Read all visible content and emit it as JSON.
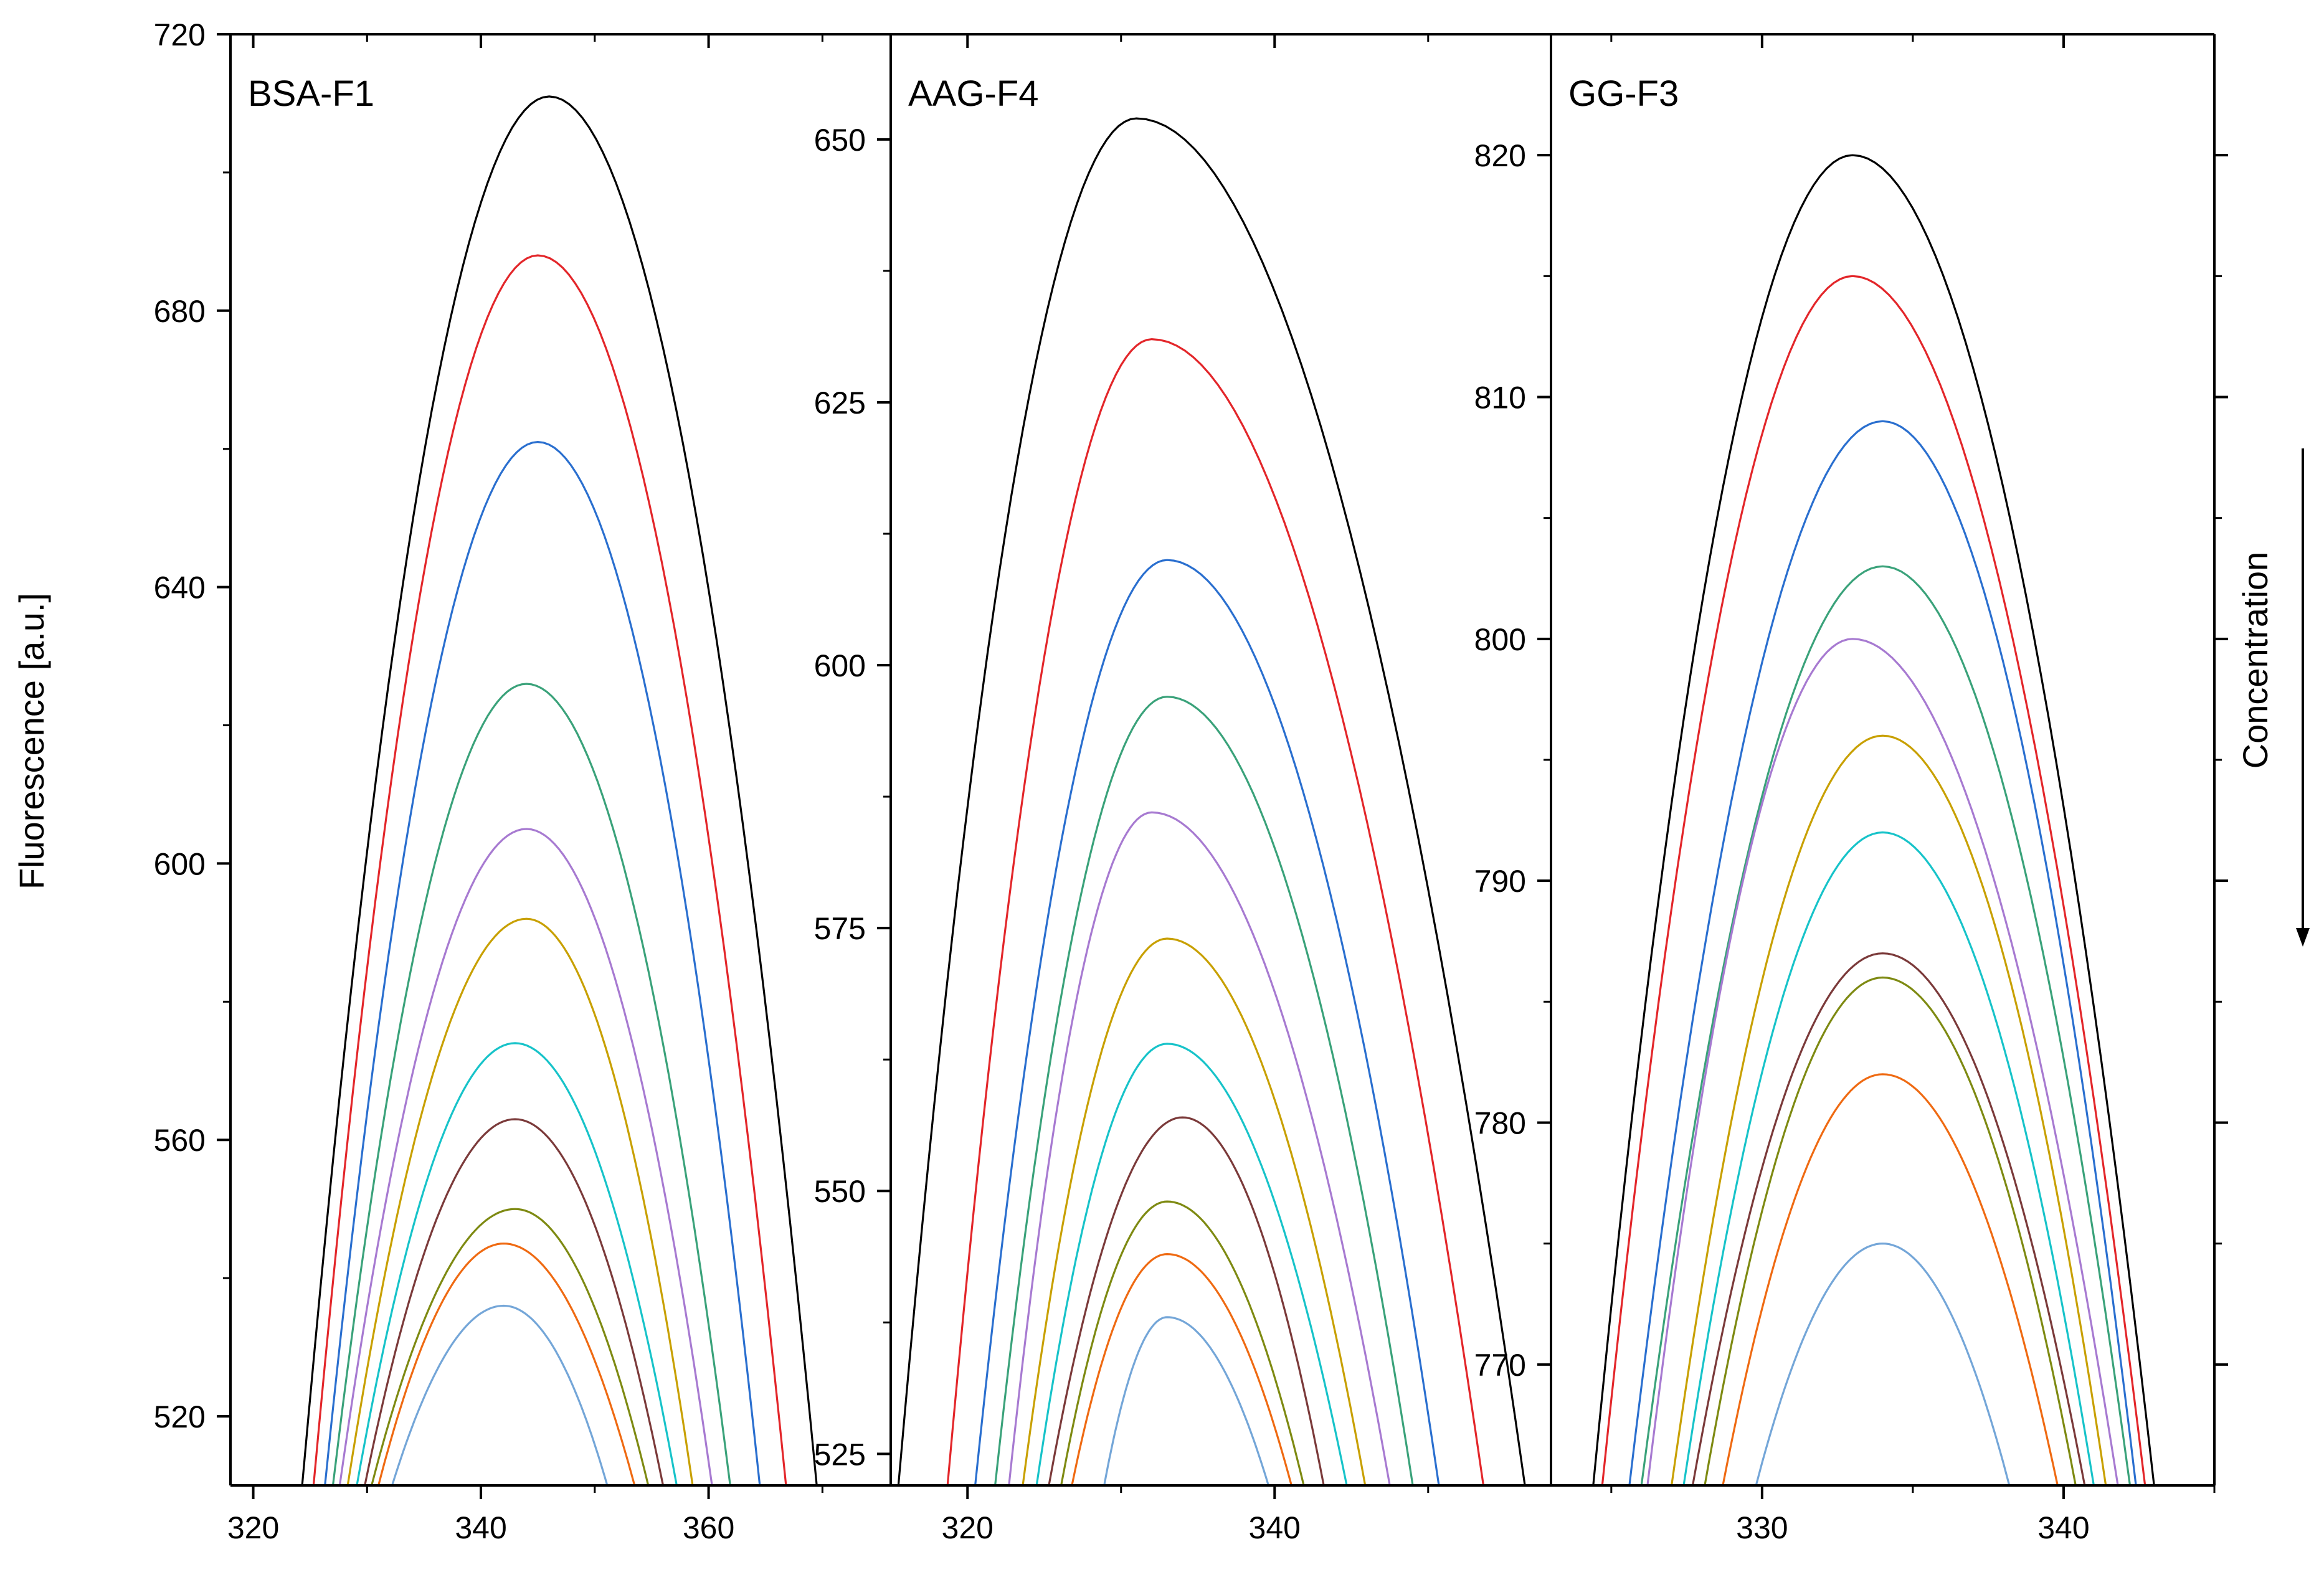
{
  "figure": {
    "ylabel": "Fluorescence [a.u.]",
    "annotation": "Concentration",
    "series_colors": [
      "#000000",
      "#e3262a",
      "#2a6fcf",
      "#3aa27a",
      "#a77ad1",
      "#c8a000",
      "#17c3c9",
      "#7b3a3a",
      "#7e8a12",
      "#ef6a12",
      "#74a6d8"
    ]
  },
  "chart_data": [
    {
      "type": "line",
      "title": "BSA-F1",
      "xlabel": "",
      "ylabel": "Fluorescence [a.u.]",
      "xlim": [
        318,
        376
      ],
      "ylim": [
        510,
        720
      ],
      "xticks": [
        320,
        340,
        360
      ],
      "yticks": [
        520,
        560,
        600,
        640,
        680,
        720
      ],
      "series_count": 11,
      "peaks": [
        {
          "x": 346,
          "y": 711
        },
        {
          "x": 345,
          "y": 688
        },
        {
          "x": 345,
          "y": 661
        },
        {
          "x": 344,
          "y": 626
        },
        {
          "x": 344,
          "y": 605
        },
        {
          "x": 344,
          "y": 592
        },
        {
          "x": 343,
          "y": 574
        },
        {
          "x": 343,
          "y": 563
        },
        {
          "x": 343,
          "y": 550
        },
        {
          "x": 342,
          "y": 545
        },
        {
          "x": 342,
          "y": 536
        }
      ],
      "start_x": [
        324.3,
        325.3,
        326.3,
        327.0,
        327.6,
        328.3,
        329.1,
        329.8,
        330.4,
        331.0,
        332.2
      ],
      "end_x": [
        369.5,
        366.8,
        364.5,
        361.9,
        360.3,
        358.6,
        357.2,
        356.0,
        354.7,
        353.5,
        351.1
      ]
    },
    {
      "type": "line",
      "title": "AAG-F4",
      "xlabel": "",
      "ylabel": "",
      "xlim": [
        315,
        358
      ],
      "ylim": [
        522,
        660
      ],
      "xticks": [
        320,
        340
      ],
      "yticks": [
        525,
        550,
        575,
        600,
        625,
        650
      ],
      "series_count": 11,
      "peaks": [
        {
          "x": 331,
          "y": 652
        },
        {
          "x": 332,
          "y": 631
        },
        {
          "x": 333,
          "y": 610
        },
        {
          "x": 333,
          "y": 597
        },
        {
          "x": 332,
          "y": 586
        },
        {
          "x": 333,
          "y": 574
        },
        {
          "x": 333,
          "y": 564
        },
        {
          "x": 334,
          "y": 557
        },
        {
          "x": 333,
          "y": 549
        },
        {
          "x": 333,
          "y": 544
        },
        {
          "x": 333,
          "y": 538
        }
      ],
      "start_x": [
        315.5,
        318.7,
        320.5,
        321.8,
        322.7,
        323.6,
        324.5,
        325.3,
        326.1,
        326.8,
        328.9
      ],
      "end_x": [
        356.3,
        353.6,
        350.7,
        349.0,
        347.5,
        345.9,
        344.7,
        343.2,
        341.9,
        341.1,
        339.6
      ]
    },
    {
      "type": "line",
      "title": "GG-F3",
      "xlabel": "",
      "ylabel": "",
      "xlim": [
        323,
        345
      ],
      "ylim": [
        765,
        825
      ],
      "xticks": [
        330,
        340
      ],
      "yticks": [
        770,
        780,
        790,
        800,
        810,
        820
      ],
      "series_count": 11,
      "peaks": [
        {
          "x": 333,
          "y": 820
        },
        {
          "x": 333,
          "y": 815
        },
        {
          "x": 334,
          "y": 809
        },
        {
          "x": 334,
          "y": 803
        },
        {
          "x": 333,
          "y": 800
        },
        {
          "x": 334,
          "y": 796
        },
        {
          "x": 334,
          "y": 792
        },
        {
          "x": 334,
          "y": 787
        },
        {
          "x": 334,
          "y": 786
        },
        {
          "x": 334,
          "y": 782
        },
        {
          "x": 334,
          "y": 775
        }
      ],
      "start_x": [
        324.4,
        324.7,
        325.6,
        326.0,
        326.2,
        327.0,
        327.4,
        327.7,
        328.1,
        328.7,
        329.8
      ],
      "end_x": [
        343.0,
        342.7,
        342.4,
        342.2,
        341.8,
        341.4,
        341.0,
        340.7,
        340.4,
        339.8,
        338.2
      ]
    }
  ]
}
